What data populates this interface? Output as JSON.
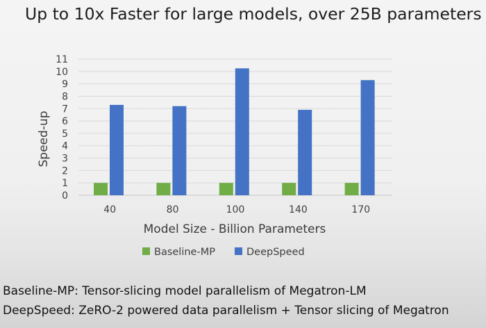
{
  "slide": {
    "title": "Up to 10x Faster for large models, over 25B parameters",
    "footnotes": [
      "Baseline-MP: Tensor-slicing model parallelism of Megatron-LM",
      "DeepSpeed: ZeRO-2 powered data parallelism + Tensor slicing of Megatron"
    ]
  },
  "chart_data": {
    "type": "bar",
    "title": "",
    "xlabel": "Model Size - Billion Parameters",
    "ylabel": "Speed-up",
    "categories": [
      "40",
      "80",
      "100",
      "140",
      "170"
    ],
    "series": [
      {
        "name": "Baseline-MP",
        "values": [
          1,
          1,
          1,
          1,
          1
        ],
        "color": "#70ad47"
      },
      {
        "name": "DeepSpeed",
        "values": [
          7.3,
          7.2,
          10.25,
          6.9,
          9.3
        ],
        "color": "#4472c4"
      }
    ],
    "ylim": [
      0,
      11
    ],
    "yticks": [
      0,
      1,
      2,
      3,
      4,
      5,
      6,
      7,
      8,
      9,
      10,
      11
    ],
    "grid": true,
    "legend": "bottom"
  }
}
